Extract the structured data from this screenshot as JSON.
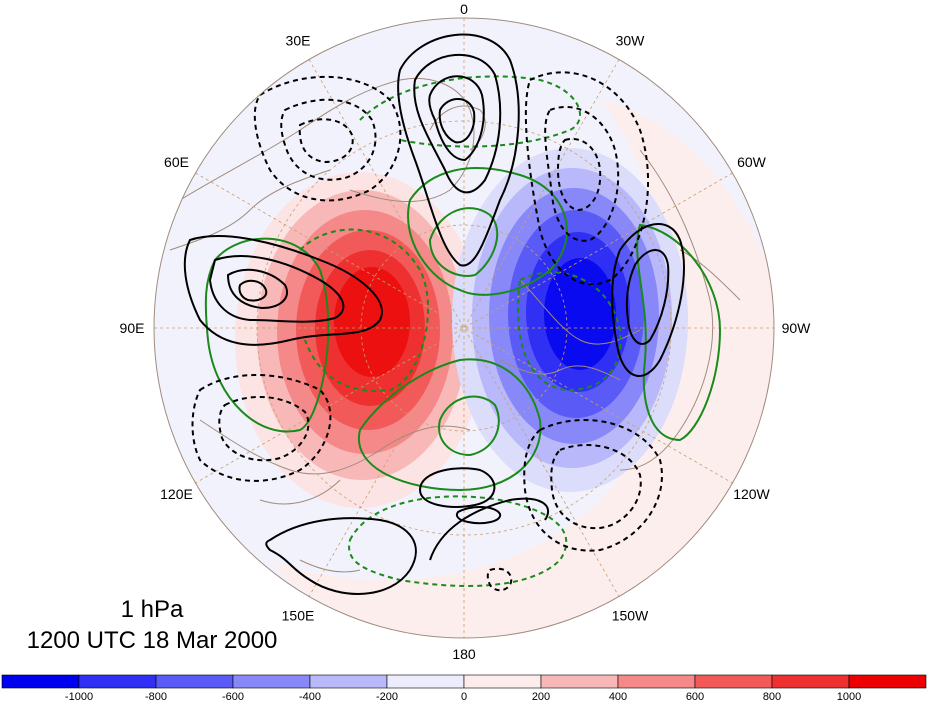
{
  "title": {
    "level": "1 hPa",
    "time": "1200 UTC 18 Mar 2000"
  },
  "longitude_labels": [
    {
      "text": "0",
      "lon": 0
    },
    {
      "text": "30W",
      "lon": -30
    },
    {
      "text": "60W",
      "lon": -60
    },
    {
      "text": "90W",
      "lon": -90
    },
    {
      "text": "120W",
      "lon": -120
    },
    {
      "text": "150W",
      "lon": -150
    },
    {
      "text": "180",
      "lon": 180
    },
    {
      "text": "150E",
      "lon": 150
    },
    {
      "text": "120E",
      "lon": 120
    },
    {
      "text": "90E",
      "lon": 90
    },
    {
      "text": "60E",
      "lon": 60
    },
    {
      "text": "30E",
      "lon": 30
    }
  ],
  "colorbar": {
    "ticks": [
      "-1000",
      "-800",
      "-600",
      "-400",
      "-200",
      "0",
      "200",
      "400",
      "600",
      "800",
      "1000"
    ],
    "colors": [
      "#0000f0",
      "#3030f4",
      "#5a5af6",
      "#8888f8",
      "#b8b8fa",
      "#ececfc",
      "#fdecec",
      "#f9b8b8",
      "#f58888",
      "#f25a5a",
      "#ef3030",
      "#ec0000"
    ]
  },
  "colors": {
    "positive_anomaly": "#ec1010",
    "negative_anomaly": "#0a0af0",
    "solid_contour": "#000000",
    "green_contour": "#1a8a1a",
    "coastline": "#a08c7c",
    "grid": "#c8a070"
  }
}
